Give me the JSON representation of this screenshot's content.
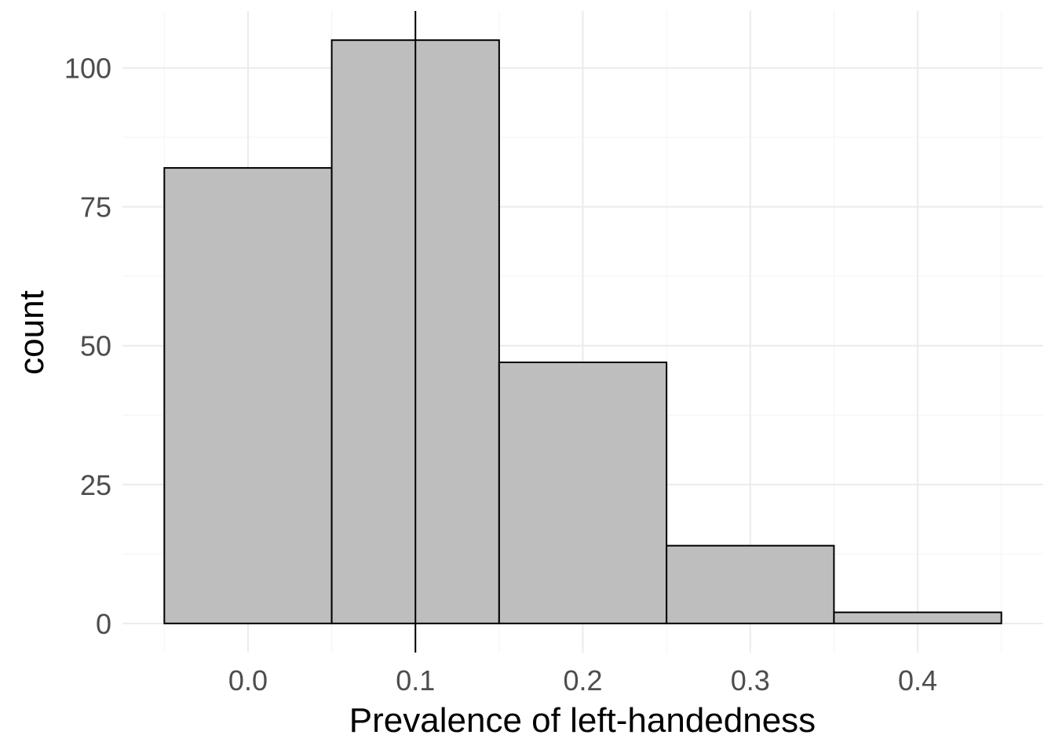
{
  "chart_data": {
    "type": "bar",
    "title": "",
    "xlabel": "Prevalence of left-handedness",
    "ylabel": "count",
    "bins": [
      {
        "x0": -0.05,
        "x1": 0.05,
        "count": 82
      },
      {
        "x0": 0.05,
        "x1": 0.15,
        "count": 105
      },
      {
        "x0": 0.15,
        "x1": 0.25,
        "count": 47
      },
      {
        "x0": 0.25,
        "x1": 0.35,
        "count": 14
      },
      {
        "x0": 0.35,
        "x1": 0.45,
        "count": 2
      }
    ],
    "xticks": [
      {
        "value": 0.0,
        "label": "0.0"
      },
      {
        "value": 0.1,
        "label": "0.1"
      },
      {
        "value": 0.2,
        "label": "0.2"
      },
      {
        "value": 0.3,
        "label": "0.3"
      },
      {
        "value": 0.4,
        "label": "0.4"
      }
    ],
    "yticks": [
      {
        "value": 0,
        "label": "0"
      },
      {
        "value": 25,
        "label": "25"
      },
      {
        "value": 50,
        "label": "50"
      },
      {
        "value": 75,
        "label": "75"
      },
      {
        "value": 100,
        "label": "100"
      }
    ],
    "xlim": [
      -0.075,
      0.475
    ],
    "ylim": [
      -5.25,
      110.25
    ],
    "reference_line_x": 0.1,
    "bar_fill": "#bebebe",
    "bar_stroke": "#000000",
    "grid": true,
    "legend": "none"
  }
}
